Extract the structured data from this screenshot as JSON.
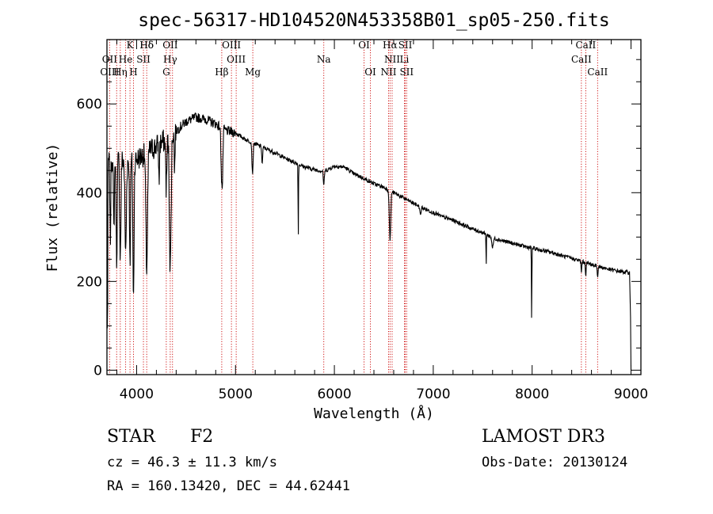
{
  "chart_data": {
    "type": "line",
    "title": "spec-56317-HD104520N453358B01_sp05-250.fits",
    "xlabel": "Wavelength (Å)",
    "ylabel": "Flux (relative)",
    "xlim": [
      3700,
      9100
    ],
    "ylim": [
      -10,
      745
    ],
    "x_ticks": [
      4000,
      5000,
      6000,
      7000,
      8000,
      9000
    ],
    "x_tick_labels": [
      "4000",
      "5000",
      "6000",
      "7000",
      "8000",
      "9000"
    ],
    "y_ticks": [
      0,
      200,
      400,
      600
    ],
    "y_tick_labels": [
      "0",
      "200",
      "400",
      "600"
    ],
    "continuum": [
      [
        3700,
        470
      ],
      [
        3800,
        480
      ],
      [
        3900,
        470
      ],
      [
        4000,
        475
      ],
      [
        4100,
        490
      ],
      [
        4200,
        505
      ],
      [
        4300,
        520
      ],
      [
        4400,
        540
      ],
      [
        4500,
        560
      ],
      [
        4600,
        570
      ],
      [
        4700,
        565
      ],
      [
        4800,
        555
      ],
      [
        4900,
        540
      ],
      [
        5000,
        535
      ],
      [
        5100,
        520
      ],
      [
        5200,
        510
      ],
      [
        5300,
        500
      ],
      [
        5400,
        490
      ],
      [
        5500,
        478
      ],
      [
        5600,
        468
      ],
      [
        5700,
        458
      ],
      [
        5800,
        452
      ],
      [
        5900,
        448
      ],
      [
        6000,
        460
      ],
      [
        6100,
        458
      ],
      [
        6200,
        442
      ],
      [
        6300,
        432
      ],
      [
        6400,
        420
      ],
      [
        6500,
        412
      ],
      [
        6600,
        400
      ],
      [
        6700,
        388
      ],
      [
        6800,
        376
      ],
      [
        6900,
        365
      ],
      [
        7000,
        355
      ],
      [
        7100,
        345
      ],
      [
        7200,
        338
      ],
      [
        7300,
        328
      ],
      [
        7400,
        318
      ],
      [
        7500,
        310
      ],
      [
        7600,
        298
      ],
      [
        7700,
        292
      ],
      [
        7800,
        286
      ],
      [
        7900,
        280
      ],
      [
        8000,
        275
      ],
      [
        8100,
        270
      ],
      [
        8200,
        265
      ],
      [
        8300,
        258
      ],
      [
        8400,
        252
      ],
      [
        8500,
        245
      ],
      [
        8600,
        238
      ],
      [
        8700,
        232
      ],
      [
        8800,
        226
      ],
      [
        8900,
        222
      ],
      [
        8980,
        220
      ]
    ],
    "absorption": [
      {
        "x": 3705,
        "depth": 420,
        "width": 4
      },
      {
        "x": 3734,
        "depth": 180,
        "width": 6
      },
      {
        "x": 3770,
        "depth": 160,
        "width": 7
      },
      {
        "x": 3798,
        "depth": 230,
        "width": 8
      },
      {
        "x": 3835,
        "depth": 220,
        "width": 9
      },
      {
        "x": 3889,
        "depth": 210,
        "width": 10
      },
      {
        "x": 3933,
        "depth": 230,
        "width": 7
      },
      {
        "x": 3968,
        "depth": 320,
        "width": 8
      },
      {
        "x": 4102,
        "depth": 260,
        "width": 12
      },
      {
        "x": 4227,
        "depth": 90,
        "width": 5
      },
      {
        "x": 4300,
        "depth": 110,
        "width": 8
      },
      {
        "x": 4340,
        "depth": 300,
        "width": 12
      },
      {
        "x": 4384,
        "depth": 90,
        "width": 5
      },
      {
        "x": 4861,
        "depth": 120,
        "width": 10
      },
      {
        "x": 4870,
        "depth": 60,
        "width": 6
      },
      {
        "x": 5172,
        "depth": 70,
        "width": 8
      },
      {
        "x": 5270,
        "depth": 40,
        "width": 6
      },
      {
        "x": 5635,
        "depth": 165,
        "width": 3
      },
      {
        "x": 5893,
        "depth": 35,
        "width": 6
      },
      {
        "x": 6563,
        "depth": 110,
        "width": 10
      },
      {
        "x": 6870,
        "depth": 20,
        "width": 8
      },
      {
        "x": 7535,
        "depth": 70,
        "width": 3
      },
      {
        "x": 7600,
        "depth": 22,
        "width": 10
      },
      {
        "x": 7995,
        "depth": 165,
        "width": 3
      },
      {
        "x": 8498,
        "depth": 25,
        "width": 5
      },
      {
        "x": 8542,
        "depth": 28,
        "width": 5
      },
      {
        "x": 8662,
        "depth": 25,
        "width": 5
      }
    ],
    "line_markers": [
      {
        "label": "Hδ",
        "x": 4102,
        "row": 0
      },
      {
        "label": "K",
        "x": 3933,
        "row": 0
      },
      {
        "label": "Hδ",
        "x": 4102,
        "row": 0
      },
      {
        "label": "OII",
        "x": 4340,
        "row": 0
      },
      {
        "label": "OIII",
        "x": 4959,
        "row": 0
      },
      {
        "label": "OI",
        "x": 6300,
        "row": 0
      },
      {
        "label": "Hα",
        "x": 6563,
        "row": 0
      },
      {
        "label": "SII",
        "x": 6717,
        "row": 0
      },
      {
        "label": "CaII",
        "x": 8542,
        "row": 0
      },
      {
        "label": "OII",
        "x": 3727,
        "row": 1
      },
      {
        "label": "He",
        "x": 3889,
        "row": 1
      },
      {
        "label": "SII",
        "x": 4069,
        "row": 1
      },
      {
        "label": "Hγ",
        "x": 4340,
        "row": 1
      },
      {
        "label": "OIII",
        "x": 5007,
        "row": 1
      },
      {
        "label": "Na",
        "x": 5893,
        "row": 1
      },
      {
        "label": "NII",
        "x": 6584,
        "row": 1
      },
      {
        "label": "Li",
        "x": 6708,
        "row": 1
      },
      {
        "label": "CaII",
        "x": 8498,
        "row": 1
      },
      {
        "label": "OIII",
        "x": 3727,
        "row": 2
      },
      {
        "label": "Hη",
        "x": 3835,
        "row": 2
      },
      {
        "label": "H",
        "x": 3968,
        "row": 2
      },
      {
        "label": "G",
        "x": 4300,
        "row": 2
      },
      {
        "label": "Hβ",
        "x": 4861,
        "row": 2
      },
      {
        "label": "Mg",
        "x": 5175,
        "row": 2
      },
      {
        "label": "OI",
        "x": 6364,
        "row": 2
      },
      {
        "label": "NII",
        "x": 6548,
        "row": 2
      },
      {
        "label": "SII",
        "x": 6731,
        "row": 2
      },
      {
        "label": "CaII",
        "x": 8662,
        "row": 2
      }
    ],
    "marker_lines": [
      3727,
      3798,
      3835,
      3889,
      3933,
      3968,
      4069,
      4102,
      4300,
      4340,
      4363,
      4861,
      4959,
      5007,
      5175,
      5893,
      6300,
      6364,
      6548,
      6563,
      6584,
      6708,
      6717,
      6731,
      8498,
      8542,
      8662
    ]
  },
  "info": {
    "object_class": "STAR",
    "subclass": "F2",
    "cz": "cz = 46.3 ± 11.3 km/s",
    "radec": "RA = 160.13420, DEC =  44.62441",
    "survey": "LAMOST DR3",
    "obs_date": "Obs-Date: 20130124"
  },
  "colors": {
    "spectrum": "#000000",
    "marker": "#cc0000",
    "axes": "#000000"
  }
}
